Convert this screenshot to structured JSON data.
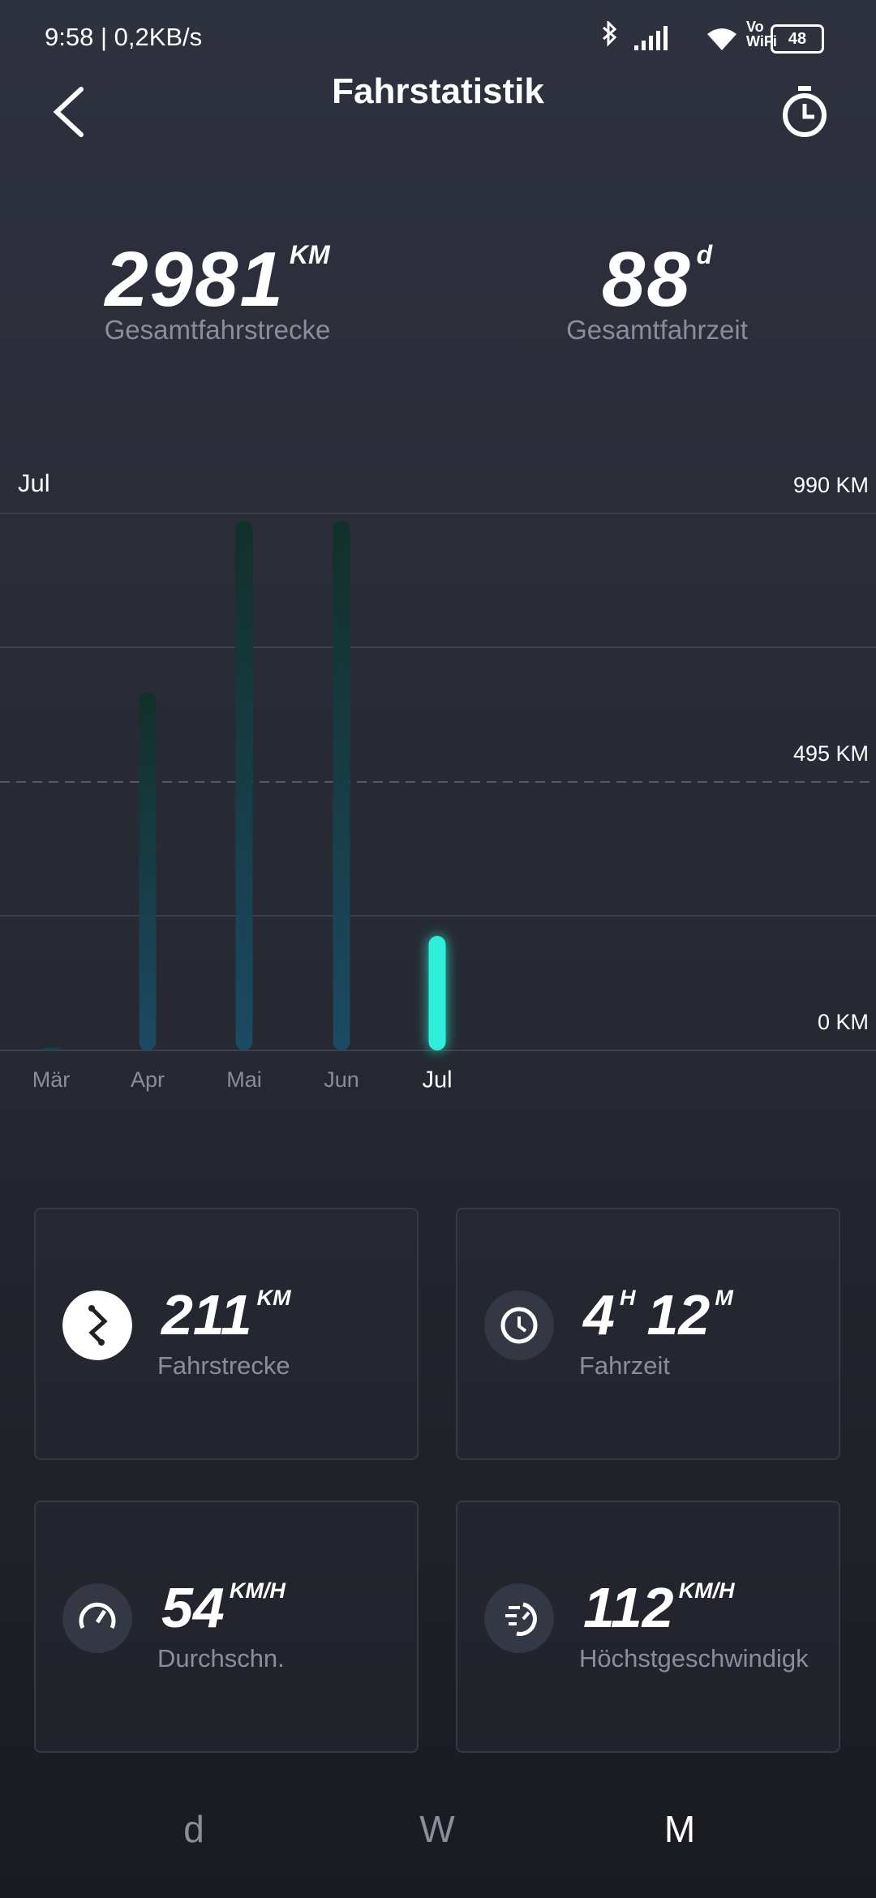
{
  "status_bar": {
    "time": "9:58 | 0,2KB/s",
    "network": "Vo\nWiFi",
    "battery": "48"
  },
  "header": {
    "title": "Fahrstatistik"
  },
  "summary": [
    {
      "value": "2981",
      "unit": "KM",
      "label": "Gesamtfahrstrecke"
    },
    {
      "value": "88",
      "unit": "d",
      "label": "Gesamtfahrzeit"
    }
  ],
  "chart_data": {
    "type": "bar",
    "subtitle": "Jul",
    "categories": [
      "Mär",
      "Apr",
      "Mai",
      "Jun",
      "Jul"
    ],
    "values": [
      7,
      660,
      977,
      977,
      211
    ],
    "ylim": [
      0,
      990
    ],
    "yticks": [
      {
        "value": 0,
        "label": "0 KM"
      },
      {
        "value": 495,
        "label": "495 KM"
      },
      {
        "value": 990,
        "label": "990 KM"
      }
    ],
    "color": "#1b4a63",
    "highlight_color": "#2ef0d8",
    "grid": true
  },
  "cards": [
    {
      "parts": [
        {
          "value": "211",
          "unit": "KM"
        }
      ],
      "label": "Fahrstrecke"
    },
    {
      "parts": [
        {
          "value": "4",
          "unit": "H"
        },
        {
          "value": "12",
          "unit": "M"
        }
      ],
      "label": "Fahrzeit"
    },
    {
      "parts": [
        {
          "value": "54",
          "unit": "KM/H"
        }
      ],
      "label": "Durchschn."
    },
    {
      "parts": [
        {
          "value": "112",
          "unit": "KM/H"
        }
      ],
      "label": "Höchstgeschwindigk"
    }
  ],
  "tabs": [
    "d",
    "W",
    "M"
  ]
}
